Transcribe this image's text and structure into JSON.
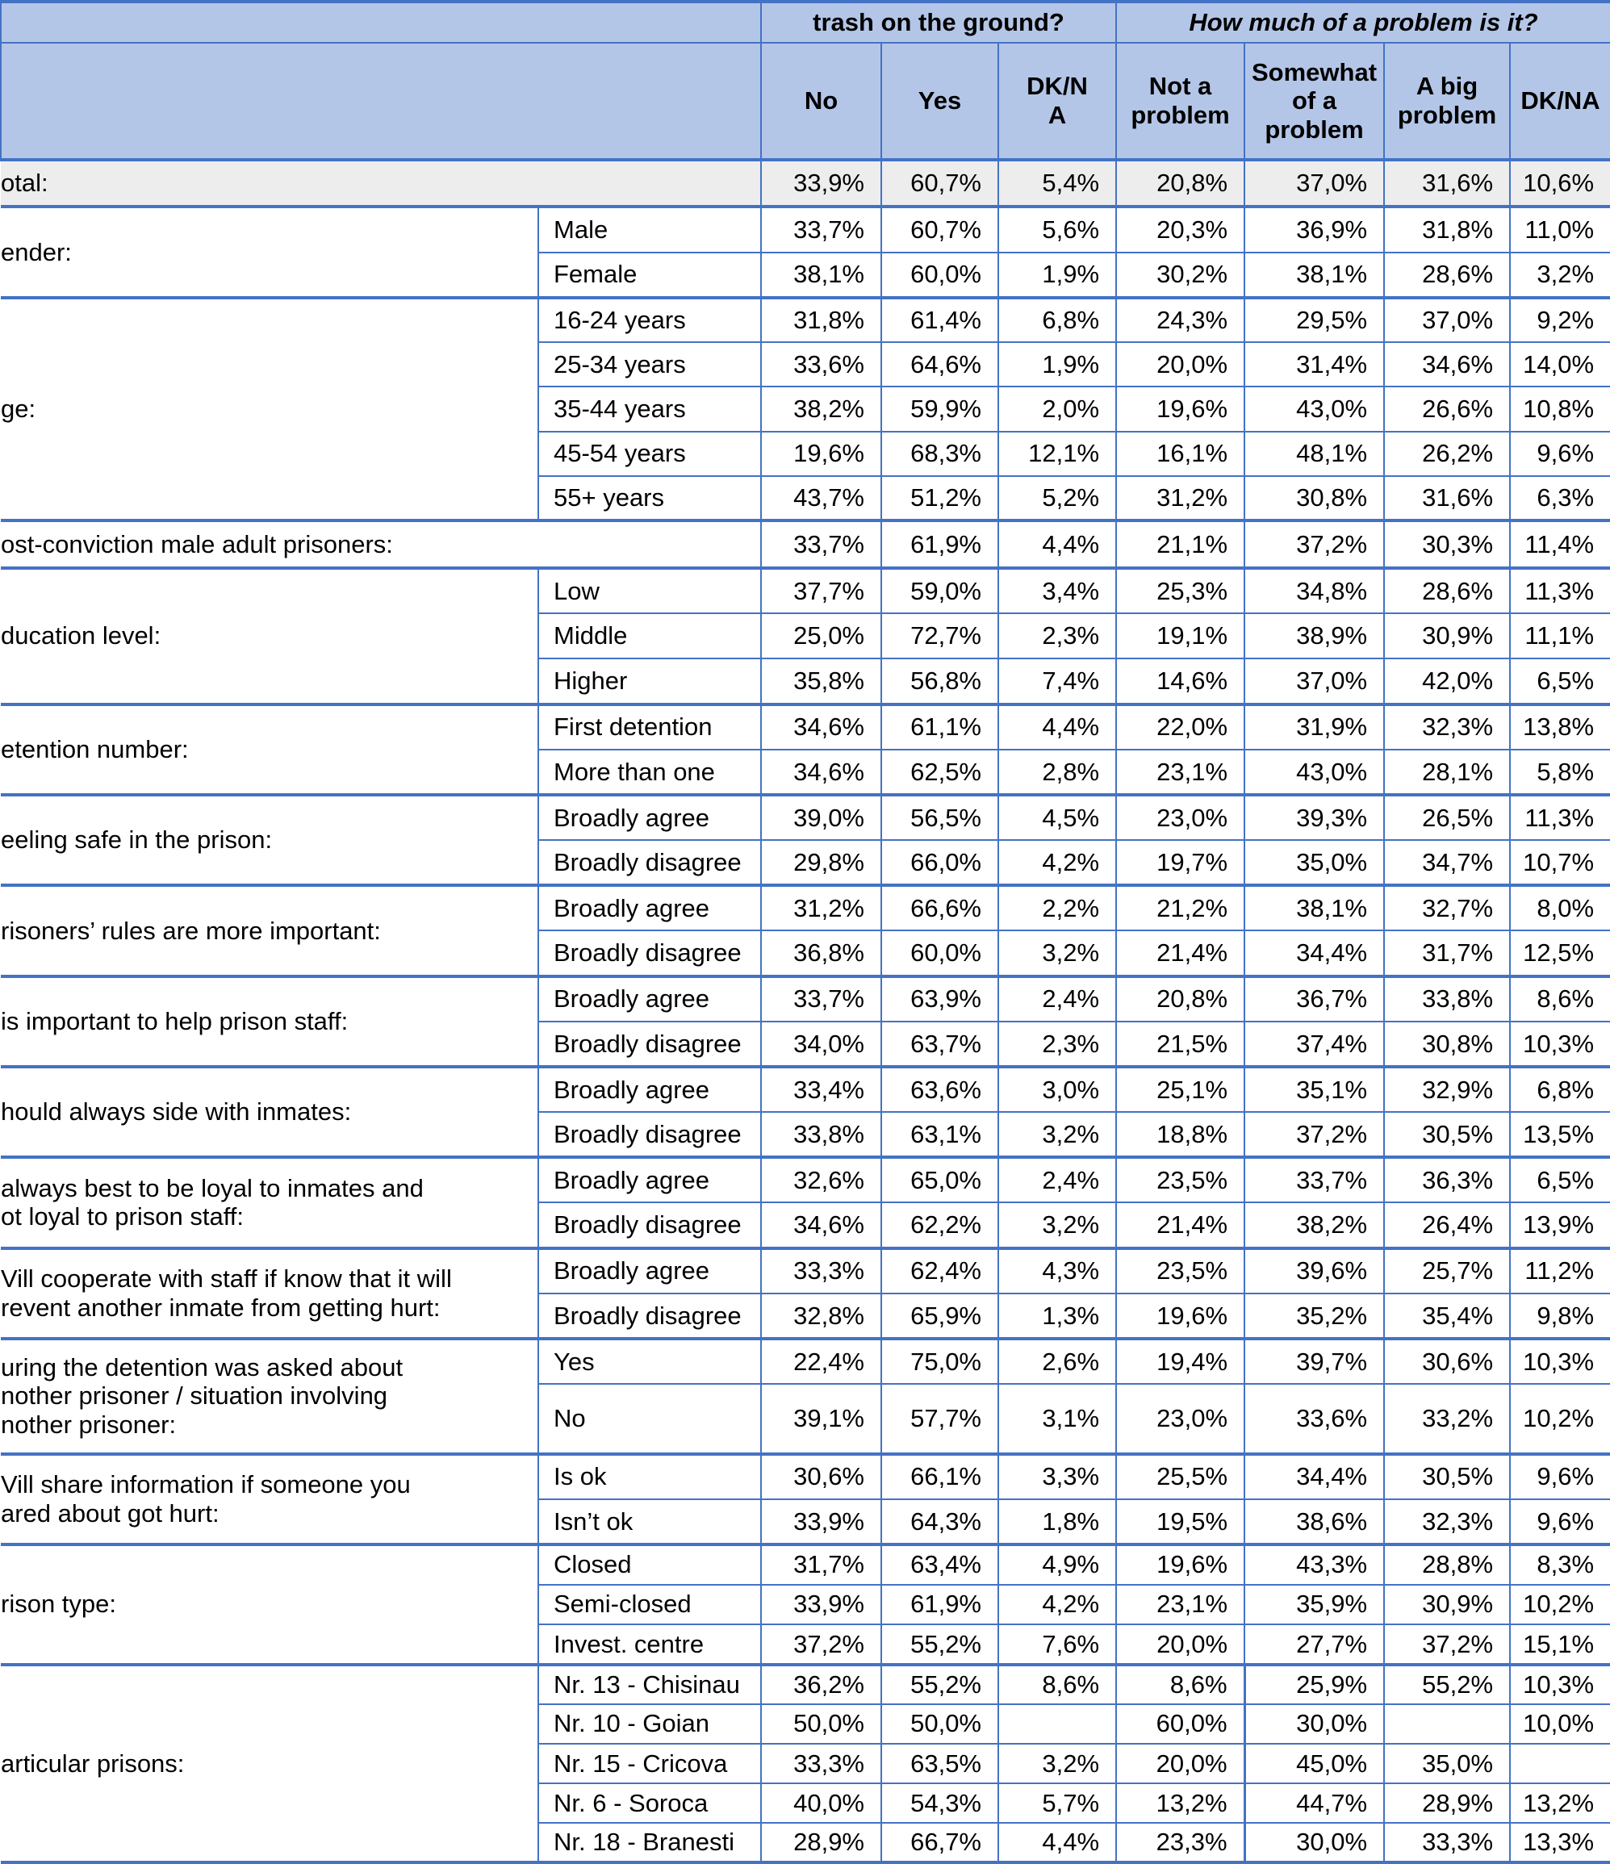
{
  "header": {
    "top": [
      "trash on the ground?",
      "How much of a problem is it?"
    ],
    "columns": [
      "No",
      "Yes",
      "DK/NA",
      "Not a problem",
      "Somewhat of a problem",
      "A big problem",
      "DK/NA"
    ]
  },
  "groups": [
    {
      "label": "otal:",
      "rows": [
        {
          "values": [
            "33,9%",
            "60,7%",
            "5,4%",
            "20,8%",
            "37,0%",
            "31,6%",
            "10,6%"
          ]
        }
      ]
    },
    {
      "label": "ender:",
      "rows": [
        {
          "sub": "Male",
          "values": [
            "33,7%",
            "60,7%",
            "5,6%",
            "20,3%",
            "36,9%",
            "31,8%",
            "11,0%"
          ]
        },
        {
          "sub": "Female",
          "values": [
            "38,1%",
            "60,0%",
            "1,9%",
            "30,2%",
            "38,1%",
            "28,6%",
            "3,2%"
          ]
        }
      ]
    },
    {
      "label": "ge:",
      "rows": [
        {
          "sub": "16-24 years",
          "values": [
            "31,8%",
            "61,4%",
            "6,8%",
            "24,3%",
            "29,5%",
            "37,0%",
            "9,2%"
          ]
        },
        {
          "sub": "25-34 years",
          "values": [
            "33,6%",
            "64,6%",
            "1,9%",
            "20,0%",
            "31,4%",
            "34,6%",
            "14,0%"
          ]
        },
        {
          "sub": "35-44 years",
          "values": [
            "38,2%",
            "59,9%",
            "2,0%",
            "19,6%",
            "43,0%",
            "26,6%",
            "10,8%"
          ]
        },
        {
          "sub": "45-54 years",
          "values": [
            "19,6%",
            "68,3%",
            "12,1%",
            "16,1%",
            "48,1%",
            "26,2%",
            "9,6%"
          ]
        },
        {
          "sub": "55+ years",
          "values": [
            "43,7%",
            "51,2%",
            "5,2%",
            "31,2%",
            "30,8%",
            "31,6%",
            "6,3%"
          ]
        }
      ]
    },
    {
      "label": "ost-conviction male adult prisoners:",
      "rows": [
        {
          "values": [
            "33,7%",
            "61,9%",
            "4,4%",
            "21,1%",
            "37,2%",
            "30,3%",
            "11,4%"
          ]
        }
      ]
    },
    {
      "label": "ducation level:",
      "rows": [
        {
          "sub": "Low",
          "values": [
            "37,7%",
            "59,0%",
            "3,4%",
            "25,3%",
            "34,8%",
            "28,6%",
            "11,3%"
          ]
        },
        {
          "sub": "Middle",
          "values": [
            "25,0%",
            "72,7%",
            "2,3%",
            "19,1%",
            "38,9%",
            "30,9%",
            "11,1%"
          ]
        },
        {
          "sub": "Higher",
          "values": [
            "35,8%",
            "56,8%",
            "7,4%",
            "14,6%",
            "37,0%",
            "42,0%",
            "6,5%"
          ]
        }
      ]
    },
    {
      "label": "etention number:",
      "rows": [
        {
          "sub": "First detention",
          "values": [
            "34,6%",
            "61,1%",
            "4,4%",
            "22,0%",
            "31,9%",
            "32,3%",
            "13,8%"
          ]
        },
        {
          "sub": "More than one",
          "values": [
            "34,6%",
            "62,5%",
            "2,8%",
            "23,1%",
            "43,0%",
            "28,1%",
            "5,8%"
          ]
        }
      ]
    },
    {
      "label": "eeling safe in the prison:",
      "rows": [
        {
          "sub": "Broadly agree",
          "values": [
            "39,0%",
            "56,5%",
            "4,5%",
            "23,0%",
            "39,3%",
            "26,5%",
            "11,3%"
          ]
        },
        {
          "sub": "Broadly disagree",
          "values": [
            "29,8%",
            "66,0%",
            "4,2%",
            "19,7%",
            "35,0%",
            "34,7%",
            "10,7%"
          ]
        }
      ]
    },
    {
      "label": "risoners’ rules are more important:",
      "rows": [
        {
          "sub": "Broadly agree",
          "values": [
            "31,2%",
            "66,6%",
            "2,2%",
            "21,2%",
            "38,1%",
            "32,7%",
            "8,0%"
          ]
        },
        {
          "sub": "Broadly disagree",
          "values": [
            "36,8%",
            "60,0%",
            "3,2%",
            "21,4%",
            "34,4%",
            "31,7%",
            "12,5%"
          ]
        }
      ]
    },
    {
      "label": "is important to help prison staff:",
      "rows": [
        {
          "sub": "Broadly agree",
          "values": [
            "33,7%",
            "63,9%",
            "2,4%",
            "20,8%",
            "36,7%",
            "33,8%",
            "8,6%"
          ]
        },
        {
          "sub": "Broadly disagree",
          "values": [
            "34,0%",
            "63,7%",
            "2,3%",
            "21,5%",
            "37,4%",
            "30,8%",
            "10,3%"
          ]
        }
      ]
    },
    {
      "label": "hould always side with inmates:",
      "rows": [
        {
          "sub": "Broadly agree",
          "values": [
            "33,4%",
            "63,6%",
            "3,0%",
            "25,1%",
            "35,1%",
            "32,9%",
            "6,8%"
          ]
        },
        {
          "sub": "Broadly disagree",
          "values": [
            "33,8%",
            "63,1%",
            "3,2%",
            "18,8%",
            "37,2%",
            "30,5%",
            "13,5%"
          ]
        }
      ]
    },
    {
      "label": "always best to be loyal to inmates and\not loyal to prison staff:",
      "rows": [
        {
          "sub": "Broadly agree",
          "values": [
            "32,6%",
            "65,0%",
            "2,4%",
            "23,5%",
            "33,7%",
            "36,3%",
            "6,5%"
          ]
        },
        {
          "sub": "Broadly disagree",
          "values": [
            "34,6%",
            "62,2%",
            "3,2%",
            "21,4%",
            "38,2%",
            "26,4%",
            "13,9%"
          ]
        }
      ]
    },
    {
      "label": "Vill cooperate with staff if know that it will\nrevent another inmate from getting hurt:",
      "rows": [
        {
          "sub": "Broadly agree",
          "values": [
            "33,3%",
            "62,4%",
            "4,3%",
            "23,5%",
            "39,6%",
            "25,7%",
            "11,2%"
          ]
        },
        {
          "sub": "Broadly disagree",
          "values": [
            "32,8%",
            "65,9%",
            "1,3%",
            "19,6%",
            "35,2%",
            "35,4%",
            "9,8%"
          ]
        }
      ]
    },
    {
      "label": "uring the detention was asked about\nnother prisoner / situation involving\nnother prisoner:",
      "rows": [
        {
          "sub": "Yes",
          "values": [
            "22,4%",
            "75,0%",
            "2,6%",
            "19,4%",
            "39,7%",
            "30,6%",
            "10,3%"
          ]
        },
        {
          "sub": "No",
          "values": [
            "39,1%",
            "57,7%",
            "3,1%",
            "23,0%",
            "33,6%",
            "33,2%",
            "10,2%"
          ]
        }
      ]
    },
    {
      "label": "Vill share information if someone you\nared about got hurt:",
      "rows": [
        {
          "sub": "Is ok",
          "values": [
            "30,6%",
            "66,1%",
            "3,3%",
            "25,5%",
            "34,4%",
            "30,5%",
            "9,6%"
          ]
        },
        {
          "sub": "Isn’t ok",
          "values": [
            "33,9%",
            "64,3%",
            "1,8%",
            "19,5%",
            "38,6%",
            "32,3%",
            "9,6%"
          ]
        }
      ]
    },
    {
      "label": "rison type:",
      "rows": [
        {
          "sub": "Closed",
          "values": [
            "31,7%",
            "63,4%",
            "4,9%",
            "19,6%",
            "43,3%",
            "28,8%",
            "8,3%"
          ]
        },
        {
          "sub": "Semi-closed",
          "values": [
            "33,9%",
            "61,9%",
            "4,2%",
            "23,1%",
            "35,9%",
            "30,9%",
            "10,2%"
          ]
        },
        {
          "sub": "Invest. centre",
          "values": [
            "37,2%",
            "55,2%",
            "7,6%",
            "20,0%",
            "27,7%",
            "37,2%",
            "15,1%"
          ]
        }
      ]
    },
    {
      "label": "articular prisons:",
      "rows": [
        {
          "sub": "Nr. 13 - Chisinau",
          "values": [
            "36,2%",
            "55,2%",
            "8,6%",
            "8,6%",
            "25,9%",
            "55,2%",
            "10,3%"
          ]
        },
        {
          "sub": "Nr. 10 - Goian",
          "values": [
            "50,0%",
            "50,0%",
            null,
            "60,0%",
            "30,0%",
            null,
            "10,0%"
          ]
        },
        {
          "sub": "Nr. 15 - Cricova",
          "values": [
            "33,3%",
            "63,5%",
            "3,2%",
            "20,0%",
            "45,0%",
            "35,0%",
            null
          ]
        },
        {
          "sub": "Nr. 6 - Soroca",
          "values": [
            "40,0%",
            "54,3%",
            "5,7%",
            "13,2%",
            "44,7%",
            "28,9%",
            "13,2%"
          ]
        },
        {
          "sub": "Nr. 18 - Branesti",
          "values": [
            "28,9%",
            "66,7%",
            "4,4%",
            "23,3%",
            "30,0%",
            "33,3%",
            "13,3%"
          ]
        }
      ]
    }
  ]
}
